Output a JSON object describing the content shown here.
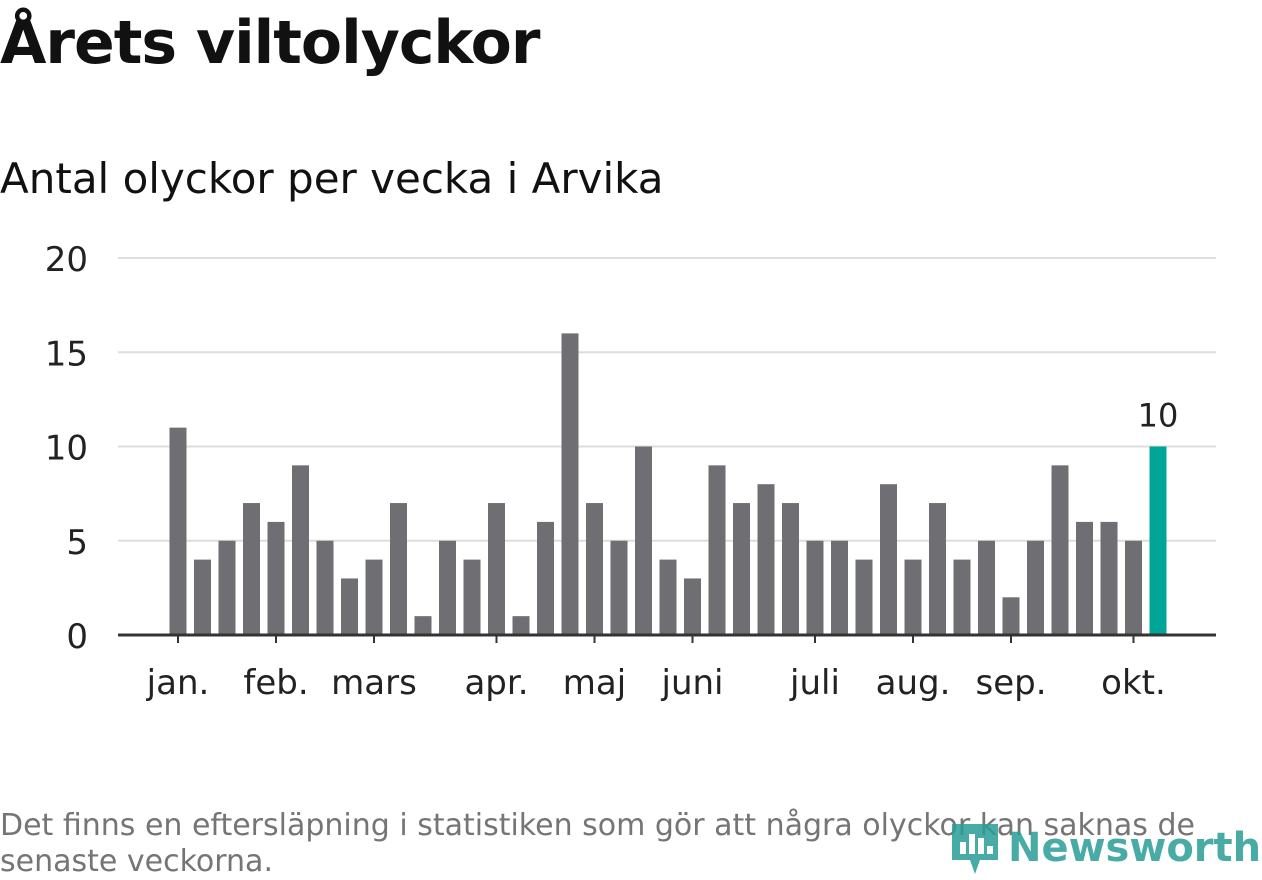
{
  "title": "Årets viltolyckor",
  "subtitle": "Antal olyckor per vecka i Arvika",
  "footnote": "Det finns en eftersläpning i statistiken som gör att några olyckor kan saknas de senaste veckorna.",
  "logo": {
    "text": "Newsworthy"
  },
  "colors": {
    "bar": "#6f6e73",
    "highlight": "#00a597",
    "grid": "#dddddd",
    "axis": "#333333",
    "text": "#222222"
  },
  "chart_data": {
    "type": "bar",
    "title": "Antal olyckor per vecka i Arvika",
    "xlabel": "",
    "ylabel": "",
    "ylim": [
      0,
      20
    ],
    "yticks": [
      0,
      5,
      10,
      15,
      20
    ],
    "grid": true,
    "weeks": [
      1,
      2,
      3,
      4,
      5,
      6,
      7,
      8,
      9,
      10,
      11,
      12,
      13,
      14,
      15,
      16,
      17,
      18,
      19,
      20,
      21,
      22,
      23,
      24,
      25,
      26,
      27,
      28,
      29,
      30,
      31,
      32,
      33,
      34,
      35,
      36,
      37,
      38,
      39,
      40,
      41
    ],
    "values": [
      11,
      4,
      5,
      7,
      6,
      9,
      5,
      3,
      4,
      7,
      1,
      5,
      4,
      7,
      1,
      6,
      16,
      7,
      5,
      10,
      4,
      3,
      9,
      7,
      8,
      7,
      5,
      5,
      4,
      8,
      4,
      7,
      4,
      5,
      2,
      5,
      9,
      6,
      6,
      5,
      10
    ],
    "highlight_index": 40,
    "highlight_label": "10",
    "month_labels": [
      {
        "label": "jan.",
        "week": 1
      },
      {
        "label": "feb.",
        "week": 5
      },
      {
        "label": "mars",
        "week": 9
      },
      {
        "label": "apr.",
        "week": 14
      },
      {
        "label": "maj",
        "week": 18
      },
      {
        "label": "juni",
        "week": 22
      },
      {
        "label": "juli",
        "week": 27
      },
      {
        "label": "aug.",
        "week": 31
      },
      {
        "label": "sep.",
        "week": 35
      },
      {
        "label": "okt.",
        "week": 40
      }
    ]
  }
}
